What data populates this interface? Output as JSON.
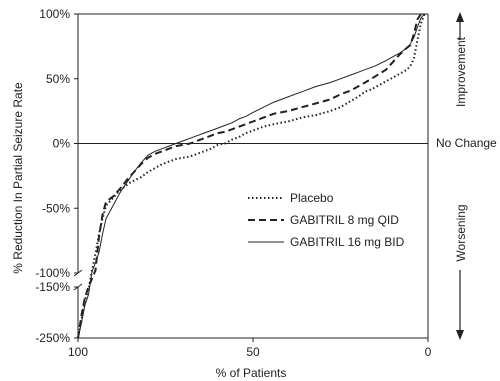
{
  "chart_data": {
    "type": "line",
    "title": "",
    "xlabel": "% of Patients",
    "ylabel": "% Reduction In Partial Seizure Rate",
    "xlim": [
      100,
      0
    ],
    "x_reversed": true,
    "ylim": [
      -250,
      100
    ],
    "y_axis_break": [
      -100,
      -150
    ],
    "x_ticks": [
      {
        "value": 100,
        "label": "100"
      },
      {
        "value": 50,
        "label": "50"
      },
      {
        "value": 0,
        "label": "0"
      }
    ],
    "y_ticks": [
      {
        "value": 100,
        "label": "100%"
      },
      {
        "value": 50,
        "label": "50%"
      },
      {
        "value": 0,
        "label": "0%"
      },
      {
        "value": -50,
        "label": "-50%"
      },
      {
        "value": -100,
        "label": "-100%"
      },
      {
        "value": -150,
        "label": "-150%"
      },
      {
        "value": -250,
        "label": "-250%"
      }
    ],
    "reference_line": {
      "y": 0,
      "label": "No Change"
    },
    "side_labels": {
      "top": "Improvement",
      "bottom": "Worsening"
    },
    "legend_position": "center-right",
    "series": [
      {
        "name": "Placebo",
        "style": "dotted",
        "points": [
          [
            100,
            -250
          ],
          [
            99,
            -215
          ],
          [
            98,
            -175
          ],
          [
            97,
            -155
          ],
          [
            96,
            -98
          ],
          [
            95,
            -85
          ],
          [
            94,
            -70
          ],
          [
            93,
            -58
          ],
          [
            92,
            -48
          ],
          [
            90,
            -42
          ],
          [
            88,
            -36
          ],
          [
            85,
            -30
          ],
          [
            82,
            -26
          ],
          [
            80,
            -22
          ],
          [
            78,
            -19
          ],
          [
            76,
            -16
          ],
          [
            74,
            -14
          ],
          [
            72,
            -12
          ],
          [
            70,
            -11
          ],
          [
            68,
            -10
          ],
          [
            66,
            -8
          ],
          [
            64,
            -6
          ],
          [
            62,
            -4
          ],
          [
            60,
            -1
          ],
          [
            58,
            0
          ],
          [
            56,
            3
          ],
          [
            54,
            5
          ],
          [
            52,
            8
          ],
          [
            50,
            10
          ],
          [
            47,
            13
          ],
          [
            44,
            15
          ],
          [
            40,
            17
          ],
          [
            36,
            20
          ],
          [
            32,
            22
          ],
          [
            28,
            25
          ],
          [
            25,
            28
          ],
          [
            22,
            33
          ],
          [
            20,
            36
          ],
          [
            18,
            40
          ],
          [
            16,
            42
          ],
          [
            14,
            45
          ],
          [
            12,
            48
          ],
          [
            10,
            51
          ],
          [
            8,
            54
          ],
          [
            6,
            57
          ],
          [
            5,
            60
          ],
          [
            4,
            66
          ],
          [
            3,
            80
          ],
          [
            2,
            93
          ],
          [
            1,
            100
          ]
        ]
      },
      {
        "name": "GABITRIL 8 mg QID",
        "style": "dashed",
        "points": [
          [
            100,
            -250
          ],
          [
            99,
            -205
          ],
          [
            98,
            -170
          ],
          [
            97,
            -150
          ],
          [
            95,
            -98
          ],
          [
            94,
            -72
          ],
          [
            93,
            -55
          ],
          [
            92,
            -45
          ],
          [
            90,
            -41
          ],
          [
            88,
            -35
          ],
          [
            86,
            -28
          ],
          [
            84,
            -22
          ],
          [
            82,
            -16
          ],
          [
            80,
            -11
          ],
          [
            78,
            -8
          ],
          [
            76,
            -6
          ],
          [
            74,
            -4
          ],
          [
            72,
            -2
          ],
          [
            70,
            -1
          ],
          [
            68,
            0
          ],
          [
            66,
            2
          ],
          [
            64,
            4
          ],
          [
            62,
            6
          ],
          [
            60,
            8
          ],
          [
            58,
            9
          ],
          [
            56,
            11
          ],
          [
            54,
            13
          ],
          [
            52,
            15
          ],
          [
            50,
            17
          ],
          [
            47,
            20
          ],
          [
            44,
            23
          ],
          [
            40,
            25
          ],
          [
            36,
            28
          ],
          [
            32,
            31
          ],
          [
            28,
            34
          ],
          [
            25,
            38
          ],
          [
            22,
            41
          ],
          [
            20,
            44
          ],
          [
            18,
            47
          ],
          [
            15,
            52
          ],
          [
            12,
            57
          ],
          [
            10,
            63
          ],
          [
            8,
            69
          ],
          [
            6,
            74
          ],
          [
            5,
            76
          ],
          [
            4,
            85
          ],
          [
            3,
            96
          ],
          [
            2,
            100
          ]
        ]
      },
      {
        "name": "GABITRIL 16 mg BID",
        "style": "solid",
        "points": [
          [
            100,
            -250
          ],
          [
            99,
            -220
          ],
          [
            98,
            -185
          ],
          [
            97,
            -165
          ],
          [
            96,
            -99
          ],
          [
            95,
            -92
          ],
          [
            94,
            -84
          ],
          [
            93,
            -70
          ],
          [
            92,
            -58
          ],
          [
            90,
            -48
          ],
          [
            88,
            -38
          ],
          [
            86,
            -30
          ],
          [
            84,
            -22
          ],
          [
            82,
            -15
          ],
          [
            80,
            -9
          ],
          [
            78,
            -6
          ],
          [
            76,
            -4
          ],
          [
            74,
            -2
          ],
          [
            72,
            0
          ],
          [
            70,
            2
          ],
          [
            68,
            4
          ],
          [
            66,
            6
          ],
          [
            64,
            8
          ],
          [
            62,
            10
          ],
          [
            60,
            12
          ],
          [
            58,
            14
          ],
          [
            56,
            16
          ],
          [
            54,
            19
          ],
          [
            52,
            21
          ],
          [
            50,
            24
          ],
          [
            47,
            28
          ],
          [
            44,
            32
          ],
          [
            40,
            36
          ],
          [
            36,
            40
          ],
          [
            32,
            44
          ],
          [
            28,
            47
          ],
          [
            25,
            50
          ],
          [
            22,
            53
          ],
          [
            20,
            55
          ],
          [
            18,
            57
          ],
          [
            15,
            60
          ],
          [
            12,
            64
          ],
          [
            10,
            67
          ],
          [
            8,
            70
          ],
          [
            6,
            74
          ],
          [
            5,
            77
          ],
          [
            4,
            82
          ],
          [
            3,
            90
          ],
          [
            2,
            97
          ],
          [
            1,
            100
          ]
        ]
      }
    ]
  }
}
